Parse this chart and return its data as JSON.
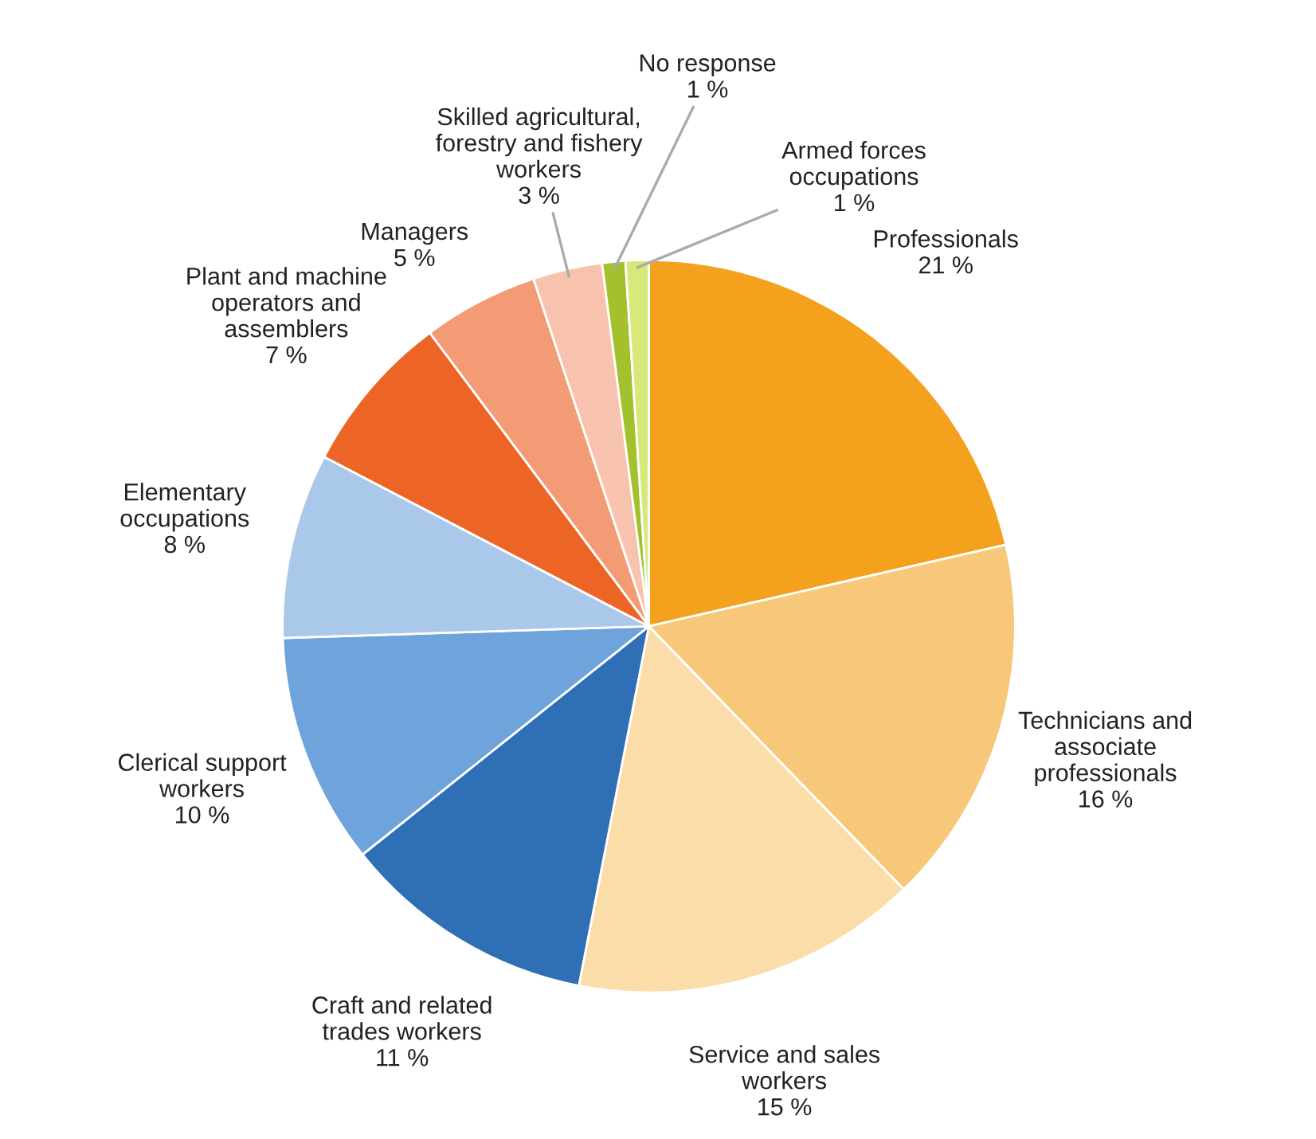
{
  "chart_data": {
    "type": "pie",
    "categories": [
      "Professionals",
      "Technicians and\nassociate\nprofessionals",
      "Service and sales\nworkers",
      "Craft and related\ntrades workers",
      "Clerical support\nworkers",
      "Elementary\noccupations",
      "Plant and machine\noperators and\nassemblers",
      "Managers",
      "Skilled agricultural,\nforestry and fishery\nworkers",
      "No response",
      "Armed forces\noccupations"
    ],
    "values": [
      21,
      16,
      15,
      11,
      10,
      8,
      7,
      5,
      3,
      1,
      1
    ],
    "value_labels": [
      "21 %",
      "16 %",
      "15 %",
      "11 %",
      "10 %",
      "8 %",
      "7 %",
      "5 %",
      "3 %",
      "1 %",
      "1 %"
    ],
    "colors": [
      "#f4a11d",
      "#f8c87a",
      "#fbddaa",
      "#2e6fb5",
      "#6fa3dc",
      "#a9c8ea",
      "#ec6526",
      "#f29b74",
      "#f7c3ae",
      "#a3c12d",
      "#d9e87a"
    ]
  }
}
